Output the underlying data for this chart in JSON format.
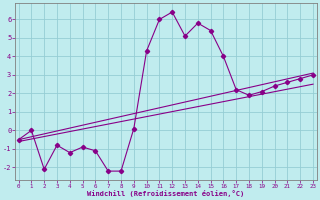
{
  "xlabel": "Windchill (Refroidissement éolien,°C)",
  "xlim": [
    -0.3,
    23.3
  ],
  "ylim": [
    -2.7,
    6.9
  ],
  "xticks": [
    0,
    1,
    2,
    3,
    4,
    5,
    6,
    7,
    8,
    9,
    10,
    11,
    12,
    13,
    14,
    15,
    16,
    17,
    18,
    19,
    20,
    21,
    22,
    23
  ],
  "yticks": [
    -2,
    -1,
    0,
    1,
    2,
    3,
    4,
    5,
    6
  ],
  "bg_color": "#c0ecee",
  "grid_color": "#96cdd4",
  "line_color": "#880088",
  "line1_x": [
    0,
    1,
    2,
    3,
    4,
    5,
    6,
    7,
    8,
    9,
    10,
    11,
    12,
    13,
    14,
    15,
    16,
    17,
    18,
    19,
    20,
    21,
    22,
    23
  ],
  "line1_y": [
    -0.5,
    0.0,
    -2.1,
    -0.8,
    -1.2,
    -0.9,
    -1.1,
    -2.2,
    -2.2,
    0.1,
    4.3,
    6.0,
    6.4,
    5.1,
    5.8,
    5.4,
    4.0,
    2.2,
    1.9,
    2.1,
    2.4,
    2.6,
    2.8,
    3.0
  ],
  "line2_x": [
    0,
    23
  ],
  "line2_y": [
    -0.6,
    2.5
  ],
  "line3_x": [
    0,
    23
  ],
  "line3_y": [
    -0.5,
    3.1
  ]
}
